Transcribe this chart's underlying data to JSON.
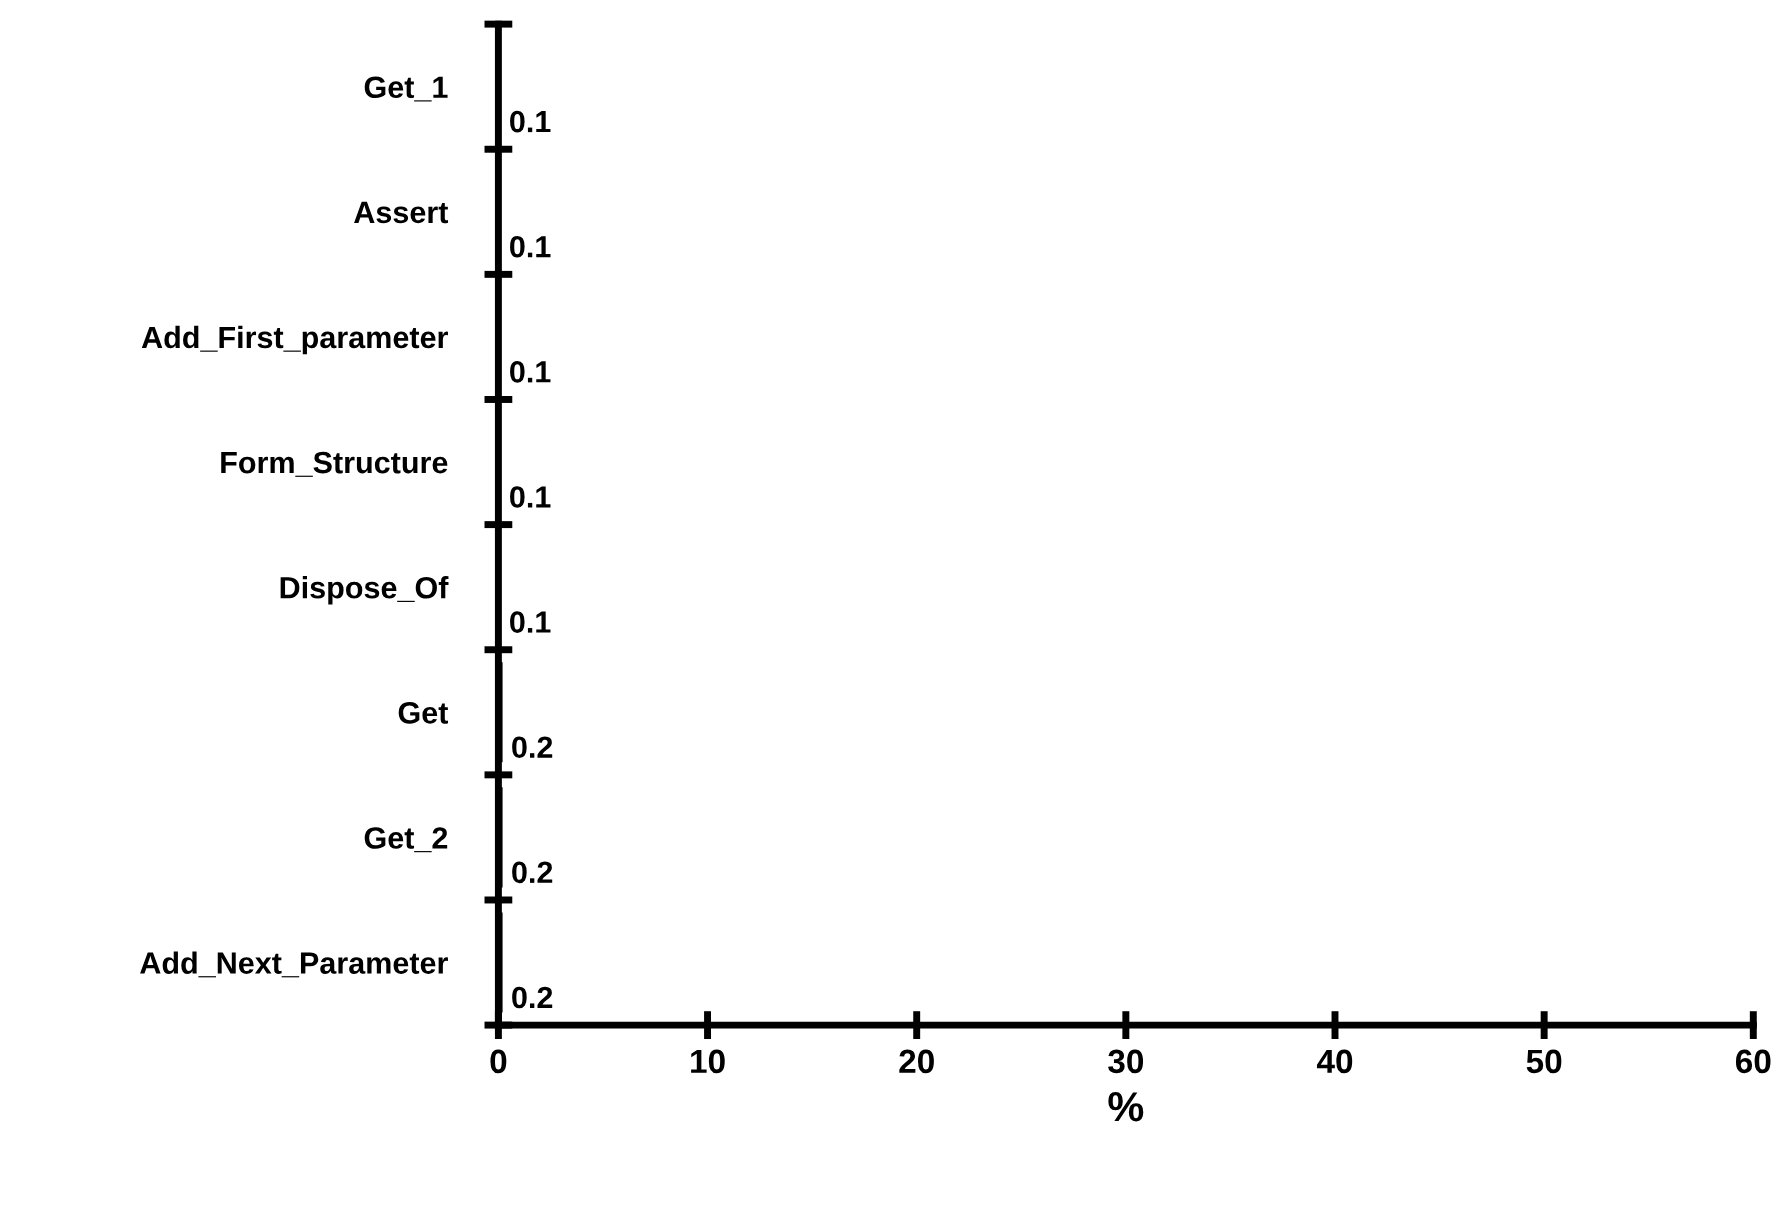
{
  "chart_data": {
    "type": "bar",
    "orientation": "horizontal",
    "xlabel": "%",
    "categories": [
      "Get_1",
      "Assert",
      "Add_First_parameter",
      "Form_Structure",
      "Dispose_Of",
      "Get",
      "Get_2",
      "Add_Next_Parameter"
    ],
    "values": [
      0.1,
      0.1,
      0.1,
      0.1,
      0.1,
      0.2,
      0.2,
      0.2
    ],
    "color": "#000000",
    "xlim": [
      0,
      60
    ],
    "xticks": [
      0,
      10,
      20,
      30,
      40,
      50,
      60
    ],
    "data_labels": true,
    "grid": false,
    "legend": false
  }
}
